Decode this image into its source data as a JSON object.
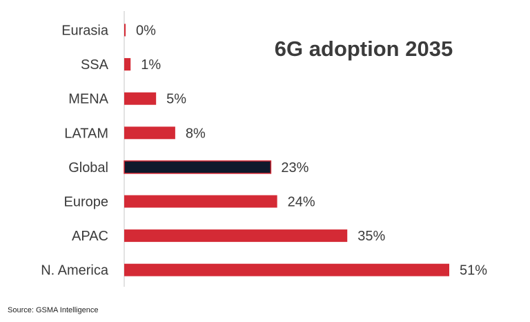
{
  "chart_data": {
    "type": "bar",
    "orientation": "horizontal",
    "title": "6G adoption 2035",
    "categories": [
      "Eurasia",
      "SSA",
      "MENA",
      "LATAM",
      "Global",
      "Europe",
      "APAC",
      "N. America"
    ],
    "values": [
      0,
      1,
      5,
      8,
      23,
      24,
      35,
      51
    ],
    "value_labels": [
      "0%",
      "1%",
      "5%",
      "8%",
      "23%",
      "24%",
      "35%",
      "51%"
    ],
    "unit": "%",
    "xlim": [
      0,
      51
    ],
    "grid": false,
    "legend": "none",
    "colors": {
      "default": "#d42a35",
      "highlight": "#0f1a2c",
      "axis": "#d9d9d9"
    },
    "highlight_category": "Global"
  },
  "source": "Source: GSMA Intelligence"
}
